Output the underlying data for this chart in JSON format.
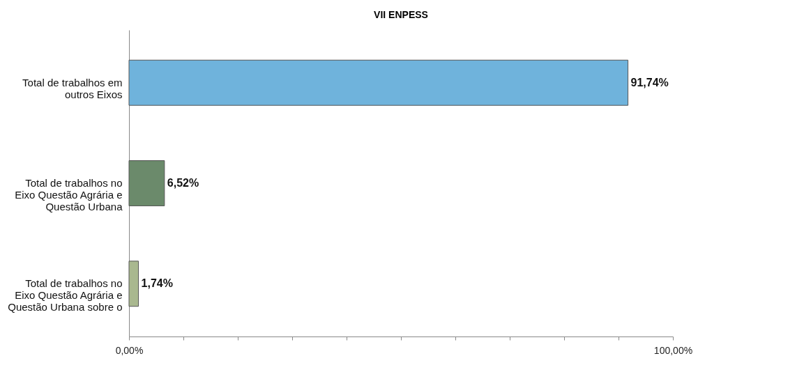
{
  "chart_data": {
    "type": "bar",
    "orientation": "horizontal",
    "title": "VII ENPESS",
    "categories": [
      "Total de trabalhos em outros Eixos",
      "Total de trabalhos no Eixo Questão Agrária e Questão Urbana",
      "Total de trabalhos no Eixo Questão Agrária e Questão Urbana sobre o"
    ],
    "values": [
      91.74,
      6.52,
      1.74
    ],
    "colors": [
      "#6fb3dc",
      "#6b8a6b",
      "#a9b88f"
    ],
    "value_labels": [
      "91,74%",
      "6,52%",
      "1,74%"
    ],
    "xlim": [
      0,
      100
    ],
    "xticks": [
      {
        "value": 0,
        "label": "0,00%"
      },
      {
        "value": 10,
        "label": null
      },
      {
        "value": 20,
        "label": null
      },
      {
        "value": 30,
        "label": null
      },
      {
        "value": 40,
        "label": null
      },
      {
        "value": 50,
        "label": null
      },
      {
        "value": 60,
        "label": null
      },
      {
        "value": 70,
        "label": null
      },
      {
        "value": 80,
        "label": null
      },
      {
        "value": 90,
        "label": null
      },
      {
        "value": 100,
        "label": "100,00%"
      }
    ],
    "grid": false
  }
}
